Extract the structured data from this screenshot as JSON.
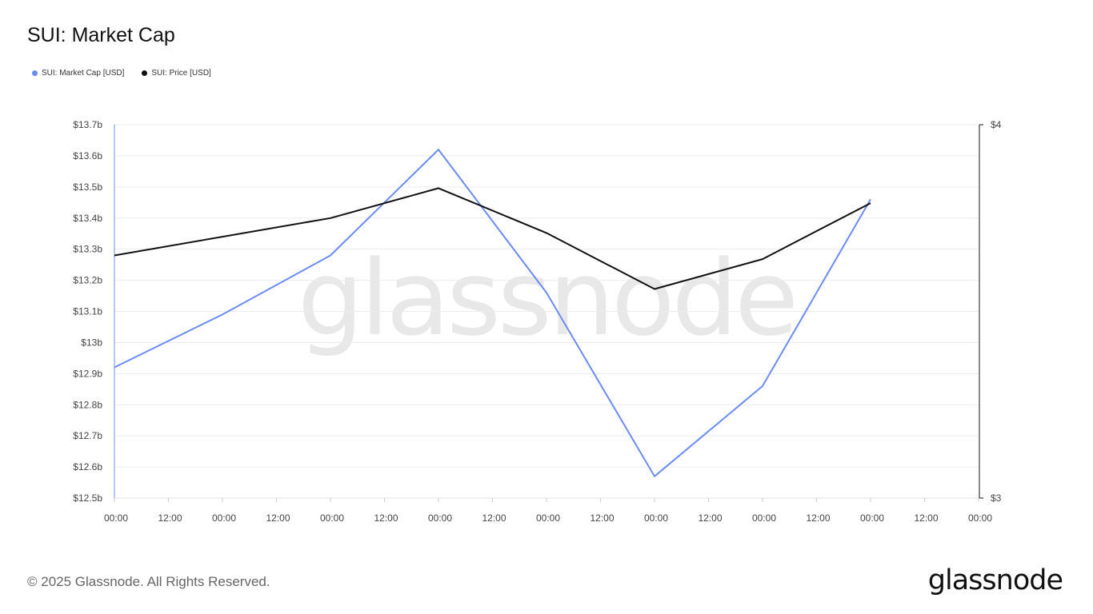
{
  "title": "SUI: Market Cap",
  "legend": [
    {
      "label": "SUI: Market Cap [USD]",
      "color": "#6b8cf5"
    },
    {
      "label": "SUI: Price [USD]",
      "color": "#111111"
    }
  ],
  "watermark": "glassnode",
  "footer": {
    "copyright": "© 2025 Glassnode. All Rights Reserved.",
    "logo": "glassnode"
  },
  "chart_data": {
    "type": "line",
    "x_ticks": [
      "00:00",
      "12:00",
      "00:00",
      "12:00",
      "00:00",
      "12:00",
      "00:00",
      "12:00",
      "00:00",
      "12:00",
      "00:00",
      "12:00",
      "00:00",
      "12:00",
      "00:00",
      "12:00",
      "00:00"
    ],
    "left_axis": {
      "ylim": [
        12.5,
        13.7
      ],
      "ticks": [
        {
          "v": 13.7,
          "label": "$13.7b"
        },
        {
          "v": 13.6,
          "label": "$13.6b"
        },
        {
          "v": 13.5,
          "label": "$13.5b"
        },
        {
          "v": 13.4,
          "label": "$13.4b"
        },
        {
          "v": 13.3,
          "label": "$13.3b"
        },
        {
          "v": 13.2,
          "label": "$13.2b"
        },
        {
          "v": 13.1,
          "label": "$13.1b"
        },
        {
          "v": 13.0,
          "label": "$13b"
        },
        {
          "v": 12.9,
          "label": "$12.9b"
        },
        {
          "v": 12.8,
          "label": "$12.8b"
        },
        {
          "v": 12.7,
          "label": "$12.7b"
        },
        {
          "v": 12.6,
          "label": "$12.6b"
        },
        {
          "v": 12.5,
          "label": "$12.5b"
        }
      ]
    },
    "right_axis": {
      "ylim": [
        3,
        4
      ],
      "ticks": [
        {
          "v": 4,
          "label": "$4"
        },
        {
          "v": 3,
          "label": "$3"
        }
      ]
    },
    "series": [
      {
        "name": "SUI: Market Cap [USD]",
        "color": "#6b8cf5",
        "axis": "left",
        "x_index": [
          0,
          2,
          4,
          6,
          8,
          10,
          12,
          14
        ],
        "values": [
          12.92,
          13.09,
          13.28,
          13.62,
          13.16,
          12.57,
          12.86,
          13.46
        ]
      },
      {
        "name": "SUI: Price [USD]",
        "color": "#111111",
        "axis": "right",
        "x_index": [
          0,
          2,
          4,
          6,
          8,
          10,
          12,
          14
        ],
        "values": [
          3.65,
          3.7,
          3.75,
          3.83,
          3.71,
          3.56,
          3.64,
          3.79
        ]
      }
    ],
    "grid": true,
    "legend_position": "top-left"
  }
}
